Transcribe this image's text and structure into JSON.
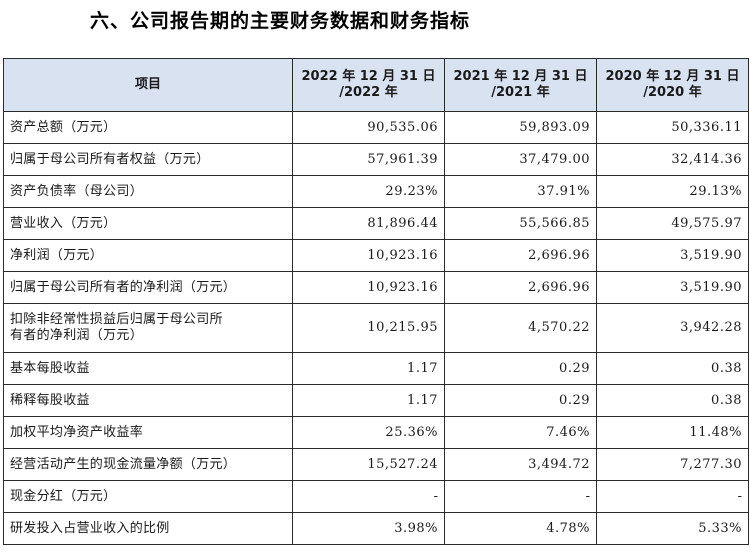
{
  "document": {
    "title": "六、公司报告期的主要财务数据和财务指标"
  },
  "table": {
    "header": {
      "item": "项目",
      "columns": [
        {
          "line1": "2022 年 12 月 31 日",
          "line2": "/2022 年"
        },
        {
          "line1": "2021 年 12 月 31 日",
          "line2": "/2021 年"
        },
        {
          "line1": "2020 年 12 月 31 日",
          "line2": "/2020 年"
        }
      ]
    },
    "rows": [
      {
        "label": "资产总额（万元）",
        "values": [
          "90,535.06",
          "59,893.09",
          "50,336.11"
        ]
      },
      {
        "label": "归属于母公司所有者权益（万元）",
        "values": [
          "57,961.39",
          "37,479.00",
          "32,414.36"
        ]
      },
      {
        "label": "资产负债率（母公司）",
        "values": [
          "29.23%",
          "37.91%",
          "29.13%"
        ]
      },
      {
        "label": "营业收入（万元）",
        "values": [
          "81,896.44",
          "55,566.85",
          "49,575.97"
        ]
      },
      {
        "label": "净利润（万元）",
        "values": [
          "10,923.16",
          "2,696.96",
          "3,519.90"
        ]
      },
      {
        "label": "归属于母公司所有者的净利润（万元）",
        "values": [
          "10,923.16",
          "2,696.96",
          "3,519.90"
        ]
      },
      {
        "label_line1": "扣除非经常性损益后归属于母公司所",
        "label_line2": "有者的净利润（万元）",
        "values": [
          "10,215.95",
          "4,570.22",
          "3,942.28"
        ]
      },
      {
        "label": "基本每股收益",
        "values": [
          "1.17",
          "0.29",
          "0.38"
        ]
      },
      {
        "label": "稀释每股收益",
        "values": [
          "1.17",
          "0.29",
          "0.38"
        ]
      },
      {
        "label": "加权平均净资产收益率",
        "values": [
          "25.36%",
          "7.46%",
          "11.48%"
        ]
      },
      {
        "label": "经营活动产生的现金流量净额（万元）",
        "values": [
          "15,527.24",
          "3,494.72",
          "7,277.30"
        ]
      },
      {
        "label": "现金分红（万元）",
        "values": [
          "-",
          "-",
          "-"
        ]
      },
      {
        "label": "研发投入占营业收入的比例",
        "values": [
          "3.98%",
          "4.78%",
          "5.33%"
        ]
      }
    ]
  }
}
